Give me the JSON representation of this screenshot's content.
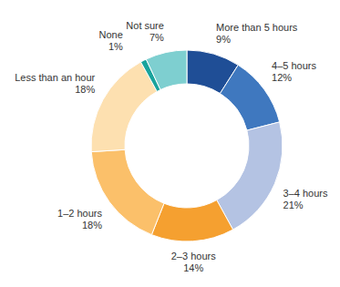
{
  "chart_data": {
    "type": "donut",
    "categories": [
      "More than 5 hours",
      "4–5 hours",
      "3–4 hours",
      "2–3 hours",
      "1–2 hours",
      "Less than an hour",
      "None",
      "Not sure"
    ],
    "values": [
      9,
      12,
      21,
      14,
      18,
      18,
      1,
      7
    ],
    "value_labels": [
      "9%",
      "12%",
      "21%",
      "14%",
      "18%",
      "18%",
      "1%",
      "7%"
    ],
    "colors": [
      "#1f4e96",
      "#3f78bf",
      "#b4c3e3",
      "#f5a030",
      "#fbc06a",
      "#fde0b0",
      "#1aa39c",
      "#7ecfd0"
    ],
    "data_labels": true
  }
}
